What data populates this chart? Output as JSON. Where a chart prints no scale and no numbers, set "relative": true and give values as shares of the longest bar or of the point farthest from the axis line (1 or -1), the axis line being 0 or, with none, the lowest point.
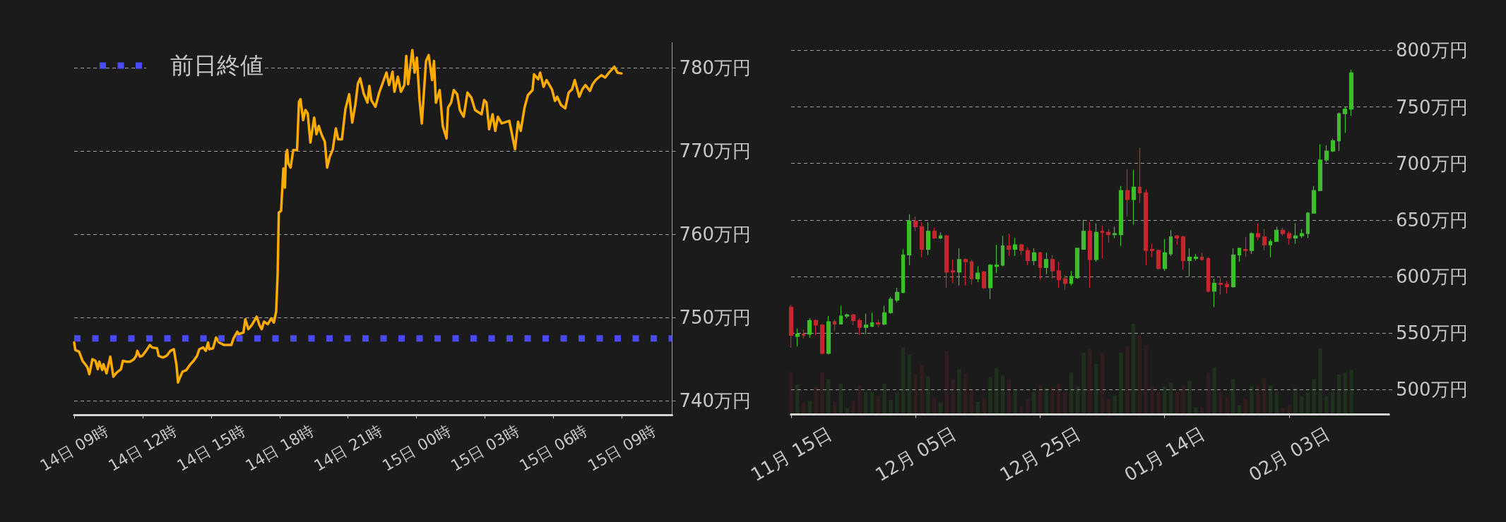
{
  "chart_data": [
    {
      "type": "line",
      "color": "#ffab00",
      "xlim": [
        "--02-14T09:00",
        "--02-15T11:12"
      ],
      "ylim": [
        738.3,
        783
      ],
      "grid": "y",
      "legend": "top left",
      "xticks": [
        {
          "value": "--02-14T09:00",
          "label": "14日 09時"
        },
        {
          "value": "--02-14T12:00",
          "label": "14日 12時"
        },
        {
          "value": "--02-14T15:00",
          "label": "14日 15時"
        },
        {
          "value": "--02-14T18:00",
          "label": "14日 18時"
        },
        {
          "value": "--02-14T21:00",
          "label": "14日 21時"
        },
        {
          "value": "--02-15T00:00",
          "label": "15日 00時"
        },
        {
          "value": "--02-15T03:00",
          "label": "15日 03時"
        },
        {
          "value": "--02-15T06:00",
          "label": "15日 06時"
        },
        {
          "value": "--02-15T09:00",
          "label": "15日 09時"
        }
      ],
      "yticks": [
        {
          "value": 740,
          "label": "740万円"
        },
        {
          "value": 750,
          "label": "750万円"
        },
        {
          "value": 760,
          "label": "760万円"
        },
        {
          "value": 770,
          "label": "770万円"
        },
        {
          "value": 780,
          "label": "780万円"
        }
      ],
      "ref_lines": [
        {
          "axis": "y",
          "value": 747.5,
          "label": "前日終値",
          "color": "#4a4af7",
          "line_style": "dotted"
        }
      ],
      "x": [
        "--02-14T09:00",
        "--02-14T09:03",
        "--02-14T09:13",
        "--02-14T09:22",
        "--02-14T09:29",
        "--02-14T09:35",
        "--02-14T09:40",
        "--02-14T09:48",
        "--02-14T09:56",
        "--02-14T10:02",
        "--02-14T10:06",
        "--02-14T10:14",
        "--02-14T10:17",
        "--02-14T10:25",
        "--02-14T10:35",
        "--02-14T10:43",
        "--02-14T10:52",
        "--02-14T11:03",
        "--02-14T11:08",
        "--02-14T11:17",
        "--02-14T11:27",
        "--02-14T11:37",
        "--02-14T11:43",
        "--02-14T11:46",
        "--02-14T11:53",
        "--02-14T11:59",
        "--02-14T12:09",
        "--02-14T12:19",
        "--02-14T12:25",
        "--02-14T12:38",
        "--02-14T12:42",
        "--02-14T12:53",
        "--02-14T13:03",
        "--02-14T13:13",
        "--02-14T13:22",
        "--02-14T13:29",
        "--02-14T13:33",
        "--02-14T13:38",
        "--02-14T13:45",
        "--02-14T13:55",
        "--02-14T14:04",
        "--02-14T14:14",
        "--02-14T14:23",
        "--02-14T14:29",
        "--02-14T14:39",
        "--02-14T14:46",
        "--02-14T14:52",
        "--02-14T14:55",
        "--02-14T15:05",
        "--02-14T15:13",
        "--02-14T15:21",
        "--02-14T15:34",
        "--02-14T15:53",
        "--02-14T15:59",
        "--02-14T16:09",
        "--02-14T16:12",
        "--02-14T16:25",
        "--02-14T16:30",
        "--02-14T16:38",
        "--02-14T16:47",
        "--02-14T17:00",
        "--02-14T17:07",
        "--02-14T17:13",
        "--02-14T17:19",
        "--02-14T17:29",
        "--02-14T17:38",
        "--02-14T17:45",
        "--02-14T17:51",
        "--02-14T17:55",
        "--02-14T17:58",
        "--02-14T18:04",
        "--02-14T18:07",
        "--02-14T18:10",
        "--02-14T18:14",
        "--02-14T18:17",
        "--02-14T18:20",
        "--02-14T18:23",
        "--02-14T18:29",
        "--02-14T18:36",
        "--02-14T18:46",
        "--02-14T18:51",
        "--02-14T18:55",
        "--02-14T19:02",
        "--02-14T19:08",
        "--02-14T19:14",
        "--02-14T19:21",
        "--02-14T19:31",
        "--02-14T19:37",
        "--02-14T19:43",
        "--02-14T19:50",
        "--02-14T19:59",
        "--02-14T20:05",
        "--02-14T20:12",
        "--02-14T20:20",
        "--02-14T20:28",
        "--02-14T20:34",
        "--02-14T20:44",
        "--02-14T20:53",
        "--02-14T21:03",
        "--02-14T21:11",
        "--02-14T21:19",
        "--02-14T21:26",
        "--02-14T21:32",
        "--02-14T21:41",
        "--02-14T21:51",
        "--02-14T21:56",
        "--02-14T22:01",
        "--02-14T22:12",
        "--02-14T22:22",
        "--02-14T22:41",
        "--02-14T22:48",
        "--02-14T22:57",
        "--02-14T23:02",
        "--02-14T23:11",
        "--02-14T23:19",
        "--02-14T23:28",
        "--02-14T23:33",
        "--02-14T23:38",
        "--02-14T23:49",
        "--02-14T23:55",
        "--02-15T00:01",
        "--02-15T00:08",
        "--02-15T00:14",
        "--02-15T00:25",
        "--02-15T00:32",
        "--02-15T00:41",
        "--02-15T00:46",
        "--02-15T00:51",
        "--02-15T01:01",
        "--02-15T01:09",
        "--02-15T01:19",
        "--02-15T01:23",
        "--02-15T01:31",
        "--02-15T01:38",
        "--02-15T01:47",
        "--02-15T01:54",
        "--02-15T02:04",
        "--02-15T02:14",
        "--02-15T02:24",
        "--02-15T02:34",
        "--02-15T02:51",
        "--02-15T02:58",
        "--02-15T03:04",
        "--02-15T03:11",
        "--02-15T03:20",
        "--02-15T03:27",
        "--02-15T03:34",
        "--02-15T03:44",
        "--02-15T04:04",
        "--02-15T04:19",
        "--02-15T04:27",
        "--02-15T04:34",
        "--02-15T04:44",
        "--02-15T04:53",
        "--02-15T05:05",
        "--02-15T05:09",
        "--02-15T05:20",
        "--02-15T05:25",
        "--02-15T05:34",
        "--02-15T05:42",
        "--02-15T05:56",
        "--02-15T06:04",
        "--02-15T06:10",
        "--02-15T06:20",
        "--02-15T06:31",
        "--02-15T06:40",
        "--02-15T06:49",
        "--02-15T06:56",
        "--02-15T07:08",
        "--02-15T07:16",
        "--02-15T07:24",
        "--02-15T07:36",
        "--02-15T07:43",
        "--02-15T07:51",
        "--02-15T08:06",
        "--02-15T08:16",
        "--02-15T08:26",
        "--02-15T08:40",
        "--02-15T08:48",
        "--02-15T08:59"
      ],
      "values": [
        747,
        746.1,
        745.9,
        744.8,
        744.4,
        744,
        743.2,
        745,
        744.8,
        743.8,
        744.7,
        743.7,
        744.4,
        743.3,
        745.3,
        742.9,
        743.4,
        743.8,
        744.8,
        744.7,
        744.7,
        745,
        745.4,
        746,
        745.3,
        745.4,
        746,
        746.7,
        746.4,
        746.3,
        745.4,
        745.2,
        745.4,
        746,
        746.2,
        744.3,
        742.2,
        742.8,
        743.5,
        743.7,
        744.3,
        744.8,
        745.4,
        746.2,
        746.4,
        746,
        747,
        746.2,
        746.3,
        747.6,
        747,
        746.7,
        746.7,
        747.5,
        748.3,
        748,
        748.2,
        749.8,
        748.6,
        749.1,
        750.1,
        749.1,
        748.6,
        749.5,
        749.2,
        749.9,
        749.4,
        750.7,
        755.3,
        762.6,
        762.8,
        765.3,
        767.9,
        765.6,
        769.6,
        770.1,
        768.5,
        768,
        770.1,
        770.1,
        775.9,
        776.2,
        773.7,
        774.9,
        774.5,
        771,
        774,
        772,
        773,
        772,
        771.1,
        768,
        769.3,
        770.2,
        772.7,
        771.4,
        771.4,
        775,
        776.8,
        773.4,
        775.5,
        778.1,
        778.7,
        776.9,
        775.8,
        777.8,
        776.1,
        775.3,
        777,
        779.4,
        777.9,
        779.5,
        777.1,
        778.9,
        777.1,
        777.9,
        781.4,
        778,
        782.1,
        779.4,
        781.2,
        776.1,
        773.3,
        780.8,
        781.5,
        778.5,
        780.8,
        775.8,
        777.3,
        773,
        771.5,
        775.2,
        775.8,
        777.3,
        776.8,
        774.9,
        774.1,
        777,
        776.4,
        774.9,
        774.4,
        776.1,
        775.8,
        772.6,
        774.4,
        772.4,
        774.1,
        773.3,
        773.6,
        770.2,
        773.5,
        772.4,
        775.2,
        776.7,
        777.3,
        779.2,
        778.6,
        779.4,
        777.7,
        778.5,
        777.4,
        776,
        776.5,
        775.5,
        775.1,
        777,
        777.4,
        778.5,
        776.5,
        777.4,
        777.9,
        777.2,
        778,
        778.5,
        779.1,
        778.8,
        779.4,
        780.1,
        779.4,
        779.3
      ]
    },
    {
      "type": "candlestick",
      "ylim": [
        478,
        800
      ],
      "grid": "y",
      "yticks": [
        {
          "value": 500,
          "label": "500万円"
        },
        {
          "value": 550,
          "label": "550万円"
        },
        {
          "value": 600,
          "label": "600万円"
        },
        {
          "value": 650,
          "label": "650万円"
        },
        {
          "value": 700,
          "label": "700万円"
        },
        {
          "value": 750,
          "label": "750万円"
        },
        {
          "value": 800,
          "label": "800万円"
        }
      ],
      "categories": [
        "11月 15日",
        null,
        null,
        null,
        null,
        null,
        null,
        null,
        null,
        null,
        null,
        null,
        null,
        null,
        null,
        null,
        null,
        null,
        null,
        null,
        "12月 05日",
        null,
        null,
        null,
        null,
        null,
        null,
        null,
        null,
        null,
        null,
        null,
        null,
        null,
        null,
        null,
        null,
        null,
        null,
        null,
        "12月 25日",
        null,
        null,
        null,
        null,
        null,
        null,
        null,
        null,
        null,
        null,
        null,
        null,
        null,
        null,
        null,
        null,
        null,
        null,
        null,
        "01月 14日",
        null,
        null,
        null,
        null,
        null,
        null,
        null,
        null,
        null,
        null,
        null,
        null,
        null,
        null,
        null,
        null,
        null,
        null,
        null,
        "02月 03日",
        null,
        null,
        null,
        null,
        null,
        null,
        null,
        null,
        null,
        null,
        null,
        null,
        null,
        null,
        null,
        null
      ],
      "ohlc": [
        [
          573,
          575,
          537,
          548
        ],
        [
          547,
          554,
          538,
          549
        ],
        [
          549,
          553,
          545,
          548
        ],
        [
          549,
          563,
          546,
          561
        ],
        [
          561,
          562,
          548,
          557
        ],
        [
          557,
          558,
          531,
          532
        ],
        [
          532,
          565,
          531,
          560
        ],
        [
          560,
          562,
          552,
          558
        ],
        [
          558,
          574,
          558,
          565
        ],
        [
          565,
          567,
          563,
          566
        ],
        [
          566,
          567,
          557,
          561
        ],
        [
          561,
          563,
          548,
          555
        ],
        [
          555,
          567,
          549,
          557
        ],
        [
          556,
          568,
          555,
          559
        ],
        [
          559,
          562,
          555,
          558
        ],
        [
          558,
          574,
          557,
          568
        ],
        [
          568,
          582,
          567,
          580
        ],
        [
          579,
          590,
          577,
          586
        ],
        [
          586,
          624,
          585,
          619
        ],
        [
          619,
          655,
          610,
          649
        ],
        [
          649,
          653,
          640,
          644
        ],
        [
          644,
          648,
          617,
          624
        ],
        [
          624,
          648,
          619,
          640
        ],
        [
          640,
          643,
          633,
          634
        ],
        [
          634,
          639,
          633,
          636
        ],
        [
          636,
          637,
          590,
          604
        ],
        [
          605,
          615,
          594,
          604
        ],
        [
          604,
          625,
          592,
          615
        ],
        [
          615,
          616,
          592,
          613
        ],
        [
          613,
          615,
          593,
          598
        ],
        [
          598,
          609,
          595,
          603
        ],
        [
          604,
          605,
          589,
          590
        ],
        [
          590,
          611,
          580,
          610
        ],
        [
          609,
          628,
          603,
          610
        ],
        [
          610,
          636,
          609,
          627
        ],
        [
          627,
          638,
          618,
          624
        ],
        [
          624,
          634,
          618,
          628
        ],
        [
          628,
          629,
          619,
          623
        ],
        [
          623,
          626,
          610,
          614
        ],
        [
          614,
          625,
          610,
          621
        ],
        [
          621,
          622,
          597,
          608
        ],
        [
          608,
          621,
          602,
          615
        ],
        [
          615,
          619,
          598,
          605
        ],
        [
          605,
          613,
          590,
          597
        ],
        [
          598,
          601,
          588,
          594
        ],
        [
          594,
          605,
          592,
          600
        ],
        [
          599,
          625,
          598,
          625
        ],
        [
          624,
          650,
          624,
          640
        ],
        [
          640,
          648,
          590,
          615
        ],
        [
          615,
          647,
          613,
          639
        ],
        [
          640,
          645,
          616,
          639
        ],
        [
          639,
          642,
          630,
          637
        ],
        [
          637,
          644,
          634,
          638
        ],
        [
          637,
          680,
          627,
          676
        ],
        [
          676,
          695,
          653,
          668
        ],
        [
          668,
          694,
          646,
          679
        ],
        [
          679,
          714,
          665,
          674
        ],
        [
          674,
          677,
          610,
          623
        ],
        [
          624,
          629,
          617,
          623
        ],
        [
          623,
          624,
          606,
          607
        ],
        [
          607,
          633,
          605,
          621
        ],
        [
          620,
          641,
          618,
          635
        ],
        [
          636,
          637,
          628,
          634
        ],
        [
          635,
          636,
          606,
          614
        ],
        [
          614,
          625,
          600,
          617
        ],
        [
          616,
          620,
          614,
          617
        ],
        [
          617,
          621,
          614,
          615
        ],
        [
          616,
          617,
          586,
          587
        ],
        [
          587,
          598,
          573,
          594
        ],
        [
          594,
          600,
          584,
          593
        ],
        [
          593,
          596,
          585,
          591
        ],
        [
          591,
          625,
          590,
          619
        ],
        [
          619,
          625,
          613,
          625
        ],
        [
          624,
          635,
          617,
          623
        ],
        [
          623,
          639,
          620,
          638
        ],
        [
          638,
          647,
          632,
          635
        ],
        [
          635,
          642,
          623,
          628
        ],
        [
          628,
          633,
          617,
          631
        ],
        [
          631,
          644,
          631,
          641
        ],
        [
          641,
          643,
          636,
          638
        ],
        [
          638,
          640,
          628,
          634
        ],
        [
          634,
          647,
          629,
          636
        ],
        [
          636,
          642,
          634,
          638
        ],
        [
          638,
          657,
          634,
          656
        ],
        [
          656,
          680,
          656,
          676
        ],
        [
          676,
          717,
          676,
          703
        ],
        [
          703,
          716,
          701,
          711
        ],
        [
          711,
          722,
          710,
          720
        ],
        [
          720,
          745,
          711,
          744
        ],
        [
          744,
          750,
          727,
          748
        ],
        [
          748,
          783,
          742,
          780
        ],
        null,
        null,
        null,
        null,
        null,
        null
      ],
      "colors": [
        "#c7262f",
        "#3cbf2b",
        "#c7262f",
        "#3cbf2b",
        "#c7262f",
        "#c7262f",
        "#3cbf2b",
        "#c7262f",
        "#3cbf2b",
        "#3cbf2b",
        "#c7262f",
        "#c7262f",
        "#3cbf2b",
        "#3cbf2b",
        "#c7262f",
        "#3cbf2b",
        "#3cbf2b",
        "#3cbf2b",
        "#3cbf2b",
        "#3cbf2b",
        "#c7262f",
        "#c7262f",
        "#3cbf2b",
        "#c7262f",
        "#3cbf2b",
        "#c7262f",
        "#c7262f",
        "#3cbf2b",
        "#c7262f",
        "#c7262f",
        "#3cbf2b",
        "#c7262f",
        "#3cbf2b",
        "#3cbf2b",
        "#3cbf2b",
        "#c7262f",
        "#3cbf2b",
        "#c7262f",
        "#c7262f",
        "#3cbf2b",
        "#c7262f",
        "#3cbf2b",
        "#c7262f",
        "#c7262f",
        "#c7262f",
        "#3cbf2b",
        "#3cbf2b",
        "#3cbf2b",
        "#c7262f",
        "#3cbf2b",
        "#c7262f",
        "#c7262f",
        "#3cbf2b",
        "#3cbf2b",
        "#c7262f",
        "#3cbf2b",
        "#c7262f",
        "#c7262f",
        "#c7262f",
        "#c7262f",
        "#3cbf2b",
        "#3cbf2b",
        "#c7262f",
        "#c7262f",
        "#3cbf2b",
        "#3cbf2b",
        "#c7262f",
        "#c7262f",
        "#3cbf2b",
        "#c7262f",
        "#c7262f",
        "#3cbf2b",
        "#3cbf2b",
        "#c7262f",
        "#3cbf2b",
        "#c7262f",
        "#c7262f",
        "#3cbf2b",
        "#3cbf2b",
        "#c7262f",
        "#c7262f",
        "#3cbf2b",
        "#3cbf2b",
        "#3cbf2b",
        "#3cbf2b",
        "#3cbf2b",
        "#3cbf2b",
        "#3cbf2b",
        "#3cbf2b",
        "#3cbf2b",
        "#3cbf2b",
        null,
        null,
        null,
        null,
        null,
        null
      ]
    },
    {
      "type": "bar",
      "relative": true,
      "categories": [
        null,
        null,
        null,
        null,
        null,
        null,
        null,
        null,
        null,
        null,
        null,
        null,
        null,
        null,
        null,
        null,
        null,
        null,
        null,
        null,
        null,
        null,
        null,
        null,
        null,
        null,
        null,
        null,
        null,
        null,
        null,
        null,
        null,
        null,
        null,
        null,
        null,
        null,
        null,
        null,
        null,
        null,
        null,
        null,
        null,
        null,
        null,
        null,
        null,
        null,
        null,
        null,
        null,
        null,
        null,
        null,
        null,
        null,
        null,
        null,
        null,
        null,
        null,
        null,
        null,
        null,
        null,
        null,
        null,
        null,
        null,
        null,
        null,
        null,
        null,
        null,
        null,
        null,
        null,
        null,
        null,
        null,
        null,
        null,
        null,
        null,
        null,
        null,
        null,
        null,
        null,
        null,
        null,
        null,
        null,
        null,
        null
      ],
      "values": [
        0.47,
        0.33,
        0.13,
        0.15,
        0.3,
        0.46,
        0.39,
        0.14,
        0.34,
        0.07,
        0.15,
        0.32,
        0.25,
        0.25,
        0.2,
        0.34,
        0.16,
        0.24,
        0.74,
        0.66,
        0.44,
        0.55,
        0.42,
        0.18,
        0.13,
        0.7,
        0.39,
        0.5,
        0.45,
        0.28,
        0.14,
        0.18,
        0.41,
        0.51,
        0.43,
        0.39,
        0.27,
        0.09,
        0.17,
        0.25,
        0.32,
        0.29,
        0.29,
        0.34,
        0.25,
        0.46,
        0.31,
        0.68,
        0.72,
        0.56,
        0.68,
        0.17,
        0.21,
        0.68,
        0.75,
        1,
        0.87,
        0.76,
        0.32,
        0.25,
        0.31,
        0.35,
        0.25,
        0.32,
        0.37,
        0.08,
        0.08,
        0.46,
        0.52,
        0.25,
        0.19,
        0.39,
        0.1,
        0.17,
        0.31,
        0.32,
        0.4,
        0.32,
        0.25,
        0.07,
        0.1,
        0.29,
        0.2,
        0.24,
        0.39,
        0.73,
        0.2,
        0.25,
        0.44,
        0.46,
        0.49,
        null,
        null,
        null,
        null,
        null,
        null
      ],
      "colors": [
        "#311c1e",
        "#1f301c",
        "#311c1e",
        "#1f301c",
        "#311c1e",
        "#311c1e",
        "#1f301c",
        "#311c1e",
        "#1f301c",
        "#1f301c",
        "#311c1e",
        "#311c1e",
        "#1f301c",
        "#1f301c",
        "#311c1e",
        "#1f301c",
        "#1f301c",
        "#1f301c",
        "#1f301c",
        "#1f301c",
        "#311c1e",
        "#311c1e",
        "#1f301c",
        "#311c1e",
        "#1f301c",
        "#311c1e",
        "#311c1e",
        "#1f301c",
        "#311c1e",
        "#311c1e",
        "#1f301c",
        "#311c1e",
        "#1f301c",
        "#1f301c",
        "#1f301c",
        "#311c1e",
        "#1f301c",
        "#311c1e",
        "#311c1e",
        "#1f301c",
        "#311c1e",
        "#1f301c",
        "#311c1e",
        "#311c1e",
        "#311c1e",
        "#1f301c",
        "#1f301c",
        "#1f301c",
        "#311c1e",
        "#1f301c",
        "#311c1e",
        "#311c1e",
        "#1f301c",
        "#1f301c",
        "#311c1e",
        "#1f301c",
        "#311c1e",
        "#311c1e",
        "#311c1e",
        "#311c1e",
        "#1f301c",
        "#1f301c",
        "#311c1e",
        "#311c1e",
        "#1f301c",
        "#1f301c",
        "#311c1e",
        "#311c1e",
        "#1f301c",
        "#311c1e",
        "#311c1e",
        "#1f301c",
        "#1f301c",
        "#311c1e",
        "#1f301c",
        "#311c1e",
        "#311c1e",
        "#1f301c",
        "#1f301c",
        "#311c1e",
        "#311c1e",
        "#1f301c",
        "#1f301c",
        "#1f301c",
        "#1f301c",
        "#1f301c",
        "#1f301c",
        "#1f301c",
        "#1f301c",
        "#1f301c",
        "#1f301c",
        null,
        null,
        null,
        null,
        null,
        null
      ]
    }
  ]
}
